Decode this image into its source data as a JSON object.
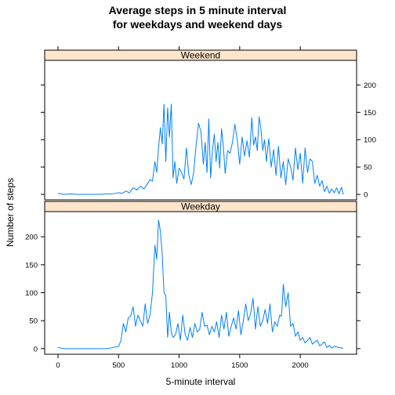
{
  "chart_data": {
    "type": "line",
    "title_lines": [
      "Average steps in 5 minute interval",
      "for weekdays and weekend days"
    ],
    "xlabel": "5-minute interval",
    "ylabel": "Number of steps",
    "xlim": [
      -110,
      2465
    ],
    "x_ticks": [
      0,
      500,
      1000,
      1500,
      2000
    ],
    "y_ticks": [
      0,
      50,
      100,
      150,
      200
    ],
    "line_color": "#0080ff",
    "strip_color": "#ffe5cc",
    "panels": [
      {
        "name": "Weekend",
        "ylim": [
          -10,
          245
        ],
        "y_axis_side": "right",
        "x": [
          0,
          50,
          100,
          150,
          200,
          250,
          300,
          350,
          400,
          450,
          500,
          530,
          560,
          590,
          620,
          650,
          680,
          710,
          740,
          760,
          780,
          800,
          815,
          830,
          845,
          860,
          875,
          890,
          905,
          920,
          935,
          950,
          965,
          980,
          1000,
          1020,
          1040,
          1060,
          1080,
          1100,
          1120,
          1140,
          1160,
          1180,
          1200,
          1215,
          1230,
          1245,
          1260,
          1275,
          1290,
          1305,
          1320,
          1335,
          1350,
          1365,
          1380,
          1400,
          1420,
          1440,
          1460,
          1480,
          1500,
          1520,
          1540,
          1560,
          1580,
          1600,
          1615,
          1630,
          1645,
          1660,
          1675,
          1690,
          1705,
          1720,
          1740,
          1760,
          1780,
          1800,
          1820,
          1840,
          1860,
          1880,
          1900,
          1920,
          1940,
          1960,
          1980,
          2000,
          2020,
          2040,
          2060,
          2080,
          2100,
          2120,
          2140,
          2160,
          2180,
          2200,
          2220,
          2240,
          2260,
          2280,
          2300,
          2320,
          2340,
          2355
        ],
        "y": [
          2,
          0,
          1,
          0,
          0,
          0,
          0,
          0,
          1,
          1,
          3,
          2,
          6,
          3,
          12,
          8,
          15,
          10,
          20,
          27,
          24,
          60,
          40,
          85,
          122,
          92,
          165,
          60,
          158,
          105,
          165,
          30,
          60,
          20,
          48,
          40,
          28,
          85,
          35,
          18,
          40,
          90,
          130,
          115,
          55,
          95,
          40,
          138,
          30,
          80,
          110,
          60,
          95,
          48,
          120,
          88,
          38,
          80,
          75,
          95,
          128,
          100,
          55,
          105,
          70,
          98,
          68,
          140,
          90,
          105,
          80,
          142,
          120,
          80,
          100,
          60,
          102,
          50,
          82,
          35,
          88,
          30,
          60,
          18,
          65,
          50,
          26,
          85,
          45,
          75,
          20,
          85,
          40,
          65,
          60,
          20,
          35,
          15,
          25,
          5,
          15,
          2,
          10,
          3,
          12,
          1,
          13,
          0
        ]
      },
      {
        "name": "Weekday",
        "ylim": [
          -10,
          245
        ],
        "y_axis_side": "left",
        "x": [
          0,
          50,
          100,
          150,
          200,
          250,
          300,
          350,
          400,
          450,
          500,
          520,
          540,
          560,
          580,
          600,
          620,
          640,
          660,
          680,
          700,
          720,
          740,
          760,
          780,
          800,
          815,
          830,
          845,
          860,
          875,
          890,
          905,
          920,
          935,
          950,
          970,
          990,
          1010,
          1030,
          1050,
          1070,
          1090,
          1110,
          1130,
          1150,
          1170,
          1190,
          1210,
          1230,
          1250,
          1270,
          1290,
          1310,
          1330,
          1350,
          1370,
          1390,
          1410,
          1430,
          1450,
          1470,
          1490,
          1510,
          1530,
          1550,
          1570,
          1590,
          1610,
          1630,
          1650,
          1670,
          1690,
          1710,
          1730,
          1750,
          1770,
          1790,
          1810,
          1830,
          1845,
          1860,
          1880,
          1900,
          1920,
          1940,
          1960,
          1980,
          2000,
          2020,
          2040,
          2060,
          2080,
          2100,
          2120,
          2140,
          2160,
          2180,
          2200,
          2220,
          2240,
          2260,
          2280,
          2300,
          2320,
          2340,
          2355
        ],
        "y": [
          2,
          0,
          0,
          0,
          0,
          0,
          0,
          0,
          0,
          2,
          4,
          15,
          45,
          30,
          55,
          58,
          75,
          40,
          60,
          50,
          40,
          80,
          45,
          60,
          100,
          185,
          160,
          230,
          210,
          170,
          100,
          95,
          20,
          65,
          30,
          20,
          25,
          45,
          15,
          60,
          25,
          15,
          38,
          20,
          45,
          30,
          35,
          65,
          40,
          42,
          25,
          40,
          30,
          48,
          20,
          60,
          35,
          65,
          22,
          40,
          55,
          35,
          68,
          25,
          50,
          80,
          50,
          63,
          90,
          35,
          75,
          40,
          50,
          70,
          45,
          80,
          30,
          48,
          40,
          60,
          58,
          115,
          75,
          100,
          40,
          45,
          22,
          30,
          15,
          20,
          10,
          15,
          20,
          8,
          12,
          15,
          5,
          8,
          12,
          2,
          6,
          1,
          4,
          3,
          2,
          1,
          1
        ]
      }
    ]
  }
}
